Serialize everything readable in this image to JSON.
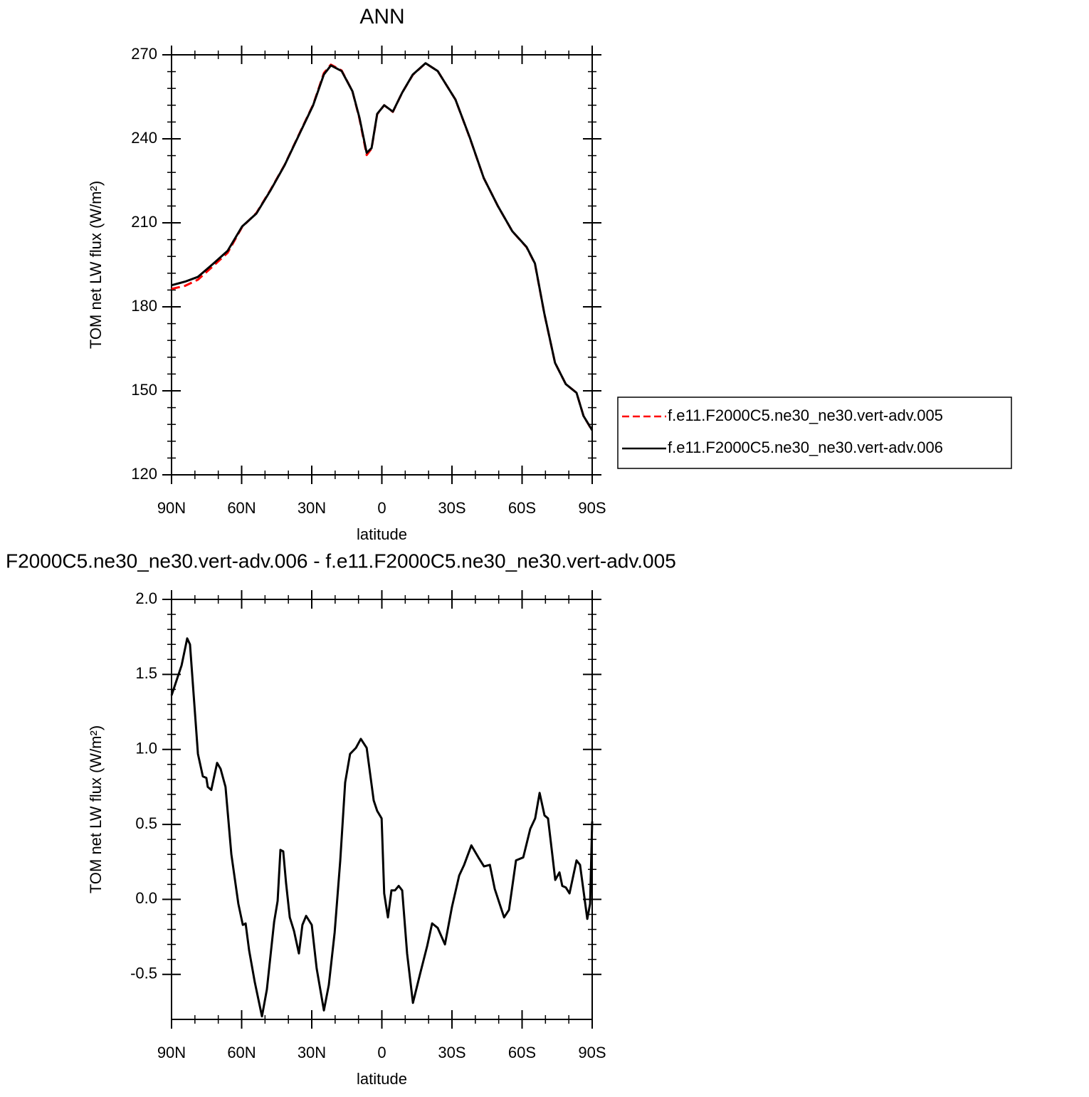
{
  "chart_data": [
    {
      "type": "line",
      "title": "ANN",
      "xlabel": "latitude",
      "ylabel": "TOM net LW flux (W/m²)",
      "x": [
        90,
        84.2,
        78.7,
        72,
        66,
        59.8,
        53.7,
        47.7,
        41.6,
        35.5,
        29.4,
        24.8,
        21.8,
        17.2,
        12.6,
        9.6,
        6.5,
        4.4,
        2,
        -1,
        -4.7,
        -8.7,
        -13.2,
        -18.7,
        -23.9,
        -31.5,
        -37.6,
        -43.6,
        -49.7,
        -55.8,
        -61.9,
        -65.5,
        -69.5,
        -74.1,
        -78.7,
        -83.3,
        -86.3,
        -90
      ],
      "xlim": [
        90,
        -90
      ],
      "xticks": [
        {
          "value": 90,
          "label": "90N"
        },
        {
          "value": 60,
          "label": "60N"
        },
        {
          "value": 30,
          "label": "30N"
        },
        0,
        {
          "value": -30,
          "label": "30S"
        },
        {
          "value": -60,
          "label": "60S"
        },
        {
          "value": -90,
          "label": "90S"
        }
      ],
      "ylim": [
        120,
        270
      ],
      "yticks": [
        120,
        150,
        180,
        210,
        240,
        270
      ],
      "legend": "right",
      "series": [
        {
          "name": "f.e11.F2000C5.ne30_ne30.vert-adv.005",
          "color": "#ff0000",
          "line_style": "dashed",
          "values": [
            186.4,
            187.5,
            189.7,
            194.7,
            199.3,
            208.5,
            213.5,
            221.7,
            230.7,
            241.5,
            252.2,
            263.5,
            266.5,
            264.4,
            257,
            247.2,
            234.2,
            236.5,
            248.8,
            252,
            249.6,
            256.5,
            262.8,
            267,
            264.2,
            254,
            240.4,
            226,
            215.9,
            207,
            201.3,
            195.4,
            177.6,
            160,
            152.4,
            149.3,
            141,
            135.8
          ]
        },
        {
          "name": "f.e11.F2000C5.ne30_ne30.vert-adv.006",
          "color": "#000000",
          "line_style": "solid",
          "values": [
            187.7,
            189,
            190.7,
            195.5,
            200,
            208.7,
            213.3,
            221.5,
            230.6,
            241.3,
            252,
            263,
            266.2,
            264.2,
            257,
            247.6,
            235,
            236.7,
            248.9,
            252,
            249.7,
            256.5,
            262.9,
            267,
            264.2,
            254,
            240.5,
            226,
            215.9,
            207,
            201.4,
            195.5,
            177.7,
            160,
            152.4,
            149.3,
            141,
            135.9
          ]
        }
      ]
    },
    {
      "type": "line",
      "title": "F2000C5.ne30_ne30.vert-adv.006 - f.e11.F2000C5.ne30_ne30.vert-adv.005",
      "xlabel": "latitude",
      "ylabel": "TOM net LW flux (W/m²)",
      "x": [
        90,
        85.7,
        83.3,
        82.1,
        78.7,
        76.6,
        75.1,
        74.5,
        73,
        70.5,
        69,
        66.9,
        64.4,
        61.4,
        59.5,
        58.3,
        56.8,
        54.4,
        51.3,
        49.2,
        46.1,
        44.6,
        43.4,
        42.2,
        41,
        39.4,
        37.6,
        35.5,
        34,
        32.4,
        30,
        27.9,
        24.8,
        22.7,
        20.2,
        17.8,
        15.7,
        13.6,
        11.1,
        9,
        6.5,
        3.5,
        2,
        0.1,
        -1,
        -2.6,
        -4.1,
        -5.6,
        -7.2,
        -8.7,
        -10.8,
        -13.3,
        -16.3,
        -19.4,
        -21.5,
        -23.9,
        -27,
        -30,
        -33.1,
        -35.2,
        -38.3,
        -41.3,
        -43.7,
        -46.2,
        -48.3,
        -52.3,
        -54.4,
        -57.4,
        -60.5,
        -63.5,
        -65.6,
        -67.5,
        -69.6,
        -71.1,
        -72.7,
        -74.2,
        -76,
        -77.2,
        -78.7,
        -80.3,
        -83.3,
        -84.8,
        -87.9,
        -89.1,
        -90
      ],
      "xlim": [
        90,
        -90
      ],
      "xticks": [
        {
          "value": 90,
          "label": "90N"
        },
        {
          "value": 60,
          "label": "60N"
        },
        {
          "value": 30,
          "label": "30N"
        },
        0,
        {
          "value": -30,
          "label": "30S"
        },
        {
          "value": -60,
          "label": "60S"
        },
        {
          "value": -90,
          "label": "90S"
        }
      ],
      "ylim": [
        -0.8,
        2.0
      ],
      "yticks": [
        -0.5,
        {
          "value": 0,
          "label": "0.0"
        },
        0.5,
        {
          "value": 1,
          "label": "1.0"
        },
        1.5,
        {
          "value": 2,
          "label": "2.0"
        }
      ],
      "series": [
        {
          "color": "#000000",
          "line_style": "solid",
          "values": [
            1.36,
            1.56,
            1.74,
            1.7,
            0.97,
            0.82,
            0.81,
            0.75,
            0.73,
            0.91,
            0.87,
            0.75,
            0.3,
            -0.03,
            -0.17,
            -0.16,
            -0.34,
            -0.55,
            -0.78,
            -0.6,
            -0.15,
            -0.01,
            0.33,
            0.32,
            0.11,
            -0.12,
            -0.21,
            -0.36,
            -0.17,
            -0.11,
            -0.17,
            -0.46,
            -0.74,
            -0.57,
            -0.22,
            0.26,
            0.78,
            0.97,
            1.01,
            1.07,
            1.01,
            0.66,
            0.59,
            0.54,
            0.04,
            -0.12,
            0.06,
            0.06,
            0.09,
            0.06,
            -0.36,
            -0.69,
            -0.5,
            -0.31,
            -0.16,
            -0.19,
            -0.3,
            -0.05,
            0.16,
            0.23,
            0.36,
            0.28,
            0.22,
            0.23,
            0.07,
            -0.12,
            -0.07,
            0.26,
            0.28,
            0.47,
            0.54,
            0.71,
            0.56,
            0.54,
            0.33,
            0.13,
            0.18,
            0.09,
            0.08,
            0.04,
            0.26,
            0.23,
            -0.13,
            -0.03,
            0.52
          ]
        }
      ]
    }
  ]
}
